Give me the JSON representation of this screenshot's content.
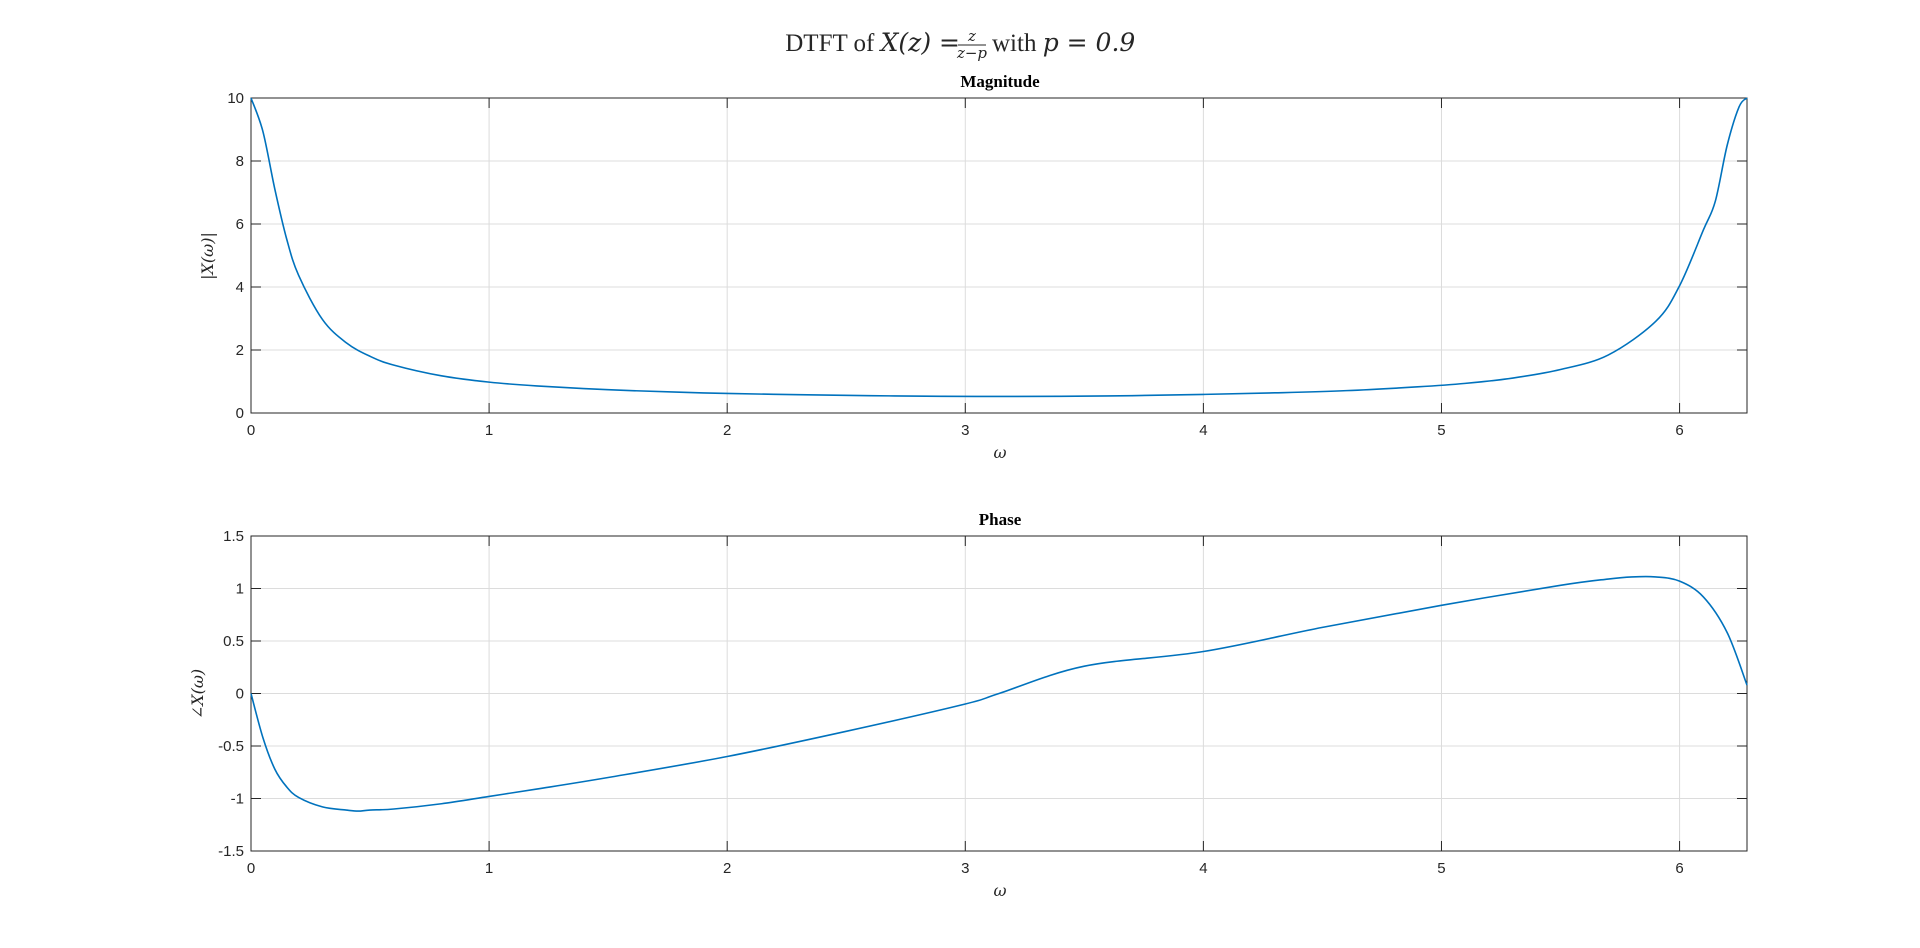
{
  "figure": {
    "suptitle_prefix": "DTFT of ",
    "suptitle_lhs": "X(z) = ",
    "suptitle_num": "z",
    "suptitle_den": "z−p",
    "suptitle_suffix": " with ",
    "suptitle_param": "p = 0.9",
    "line_color": "#0072BD",
    "grid_color": "#dcdcdc",
    "axis_color": "#262626"
  },
  "chart_data": [
    {
      "type": "line",
      "title": "Magnitude",
      "xlabel": "ω",
      "ylabel": "|X(ω)|",
      "xlim": [
        0,
        6.2832
      ],
      "ylim": [
        0,
        10
      ],
      "xticks": [
        0,
        1,
        2,
        3,
        4,
        5,
        6
      ],
      "yticks": [
        0,
        2,
        4,
        6,
        8,
        10
      ],
      "xticklabels": [
        "0",
        "1",
        "2",
        "3",
        "4",
        "5",
        "6"
      ],
      "yticklabels": [
        "0",
        "2",
        "4",
        "6",
        "8",
        "10"
      ],
      "grid": true,
      "x": [
        0,
        0.05,
        0.1,
        0.15,
        0.2,
        0.3,
        0.4,
        0.5,
        0.6,
        0.8,
        1.0,
        1.2,
        1.5,
        1.8,
        2.0,
        2.3,
        2.6,
        2.9,
        3.1416,
        3.4,
        3.7,
        4.0,
        4.3,
        4.6,
        4.9,
        5.1,
        5.3,
        5.5,
        5.7,
        5.9,
        6.0,
        6.1,
        6.15,
        6.2,
        6.25,
        6.2832
      ],
      "series": [
        {
          "values": [
            10.0,
            8.94,
            7.11,
            5.52,
            4.37,
            2.97,
            2.23,
            1.8,
            1.52,
            1.18,
            0.98,
            0.86,
            0.74,
            0.66,
            0.62,
            0.58,
            0.55,
            0.53,
            0.526,
            0.53,
            0.55,
            0.59,
            0.64,
            0.71,
            0.83,
            0.94,
            1.11,
            1.38,
            1.84,
            2.91,
            4.04,
            5.81,
            6.72,
            8.5,
            9.72,
            10.0
          ]
        }
      ]
    },
    {
      "type": "line",
      "title": "Phase",
      "xlabel": "ω",
      "ylabel": "∠X(ω)",
      "xlim": [
        0,
        6.2832
      ],
      "ylim": [
        -1.5,
        1.5
      ],
      "xticks": [
        0,
        1,
        2,
        3,
        4,
        5,
        6
      ],
      "yticks": [
        -1.5,
        -1,
        -0.5,
        0,
        0.5,
        1,
        1.5
      ],
      "xticklabels": [
        "0",
        "1",
        "2",
        "3",
        "4",
        "5",
        "6"
      ],
      "yticklabels": [
        "-1.5",
        "-1",
        "-0.5",
        "0",
        "0.5",
        "1",
        "1.5"
      ],
      "grid": true,
      "x": [
        0,
        0.05,
        0.1,
        0.15,
        0.2,
        0.3,
        0.4,
        0.45,
        0.5,
        0.6,
        0.8,
        1.0,
        1.2,
        1.5,
        2.0,
        2.5,
        3.0,
        3.1416,
        3.5,
        4.0,
        4.5,
        5.0,
        5.5,
        5.7,
        5.8,
        5.9,
        6.0,
        6.1,
        6.2,
        6.2832
      ],
      "series": [
        {
          "values": [
            0,
            -0.42,
            -0.72,
            -0.89,
            -0.99,
            -1.08,
            -1.11,
            -1.12,
            -1.11,
            -1.1,
            -1.05,
            -0.98,
            -0.91,
            -0.8,
            -0.6,
            -0.36,
            -0.1,
            0,
            0.26,
            0.4,
            0.63,
            0.84,
            1.03,
            1.09,
            1.11,
            1.11,
            1.07,
            0.92,
            0.58,
            0.08
          ]
        }
      ]
    }
  ]
}
